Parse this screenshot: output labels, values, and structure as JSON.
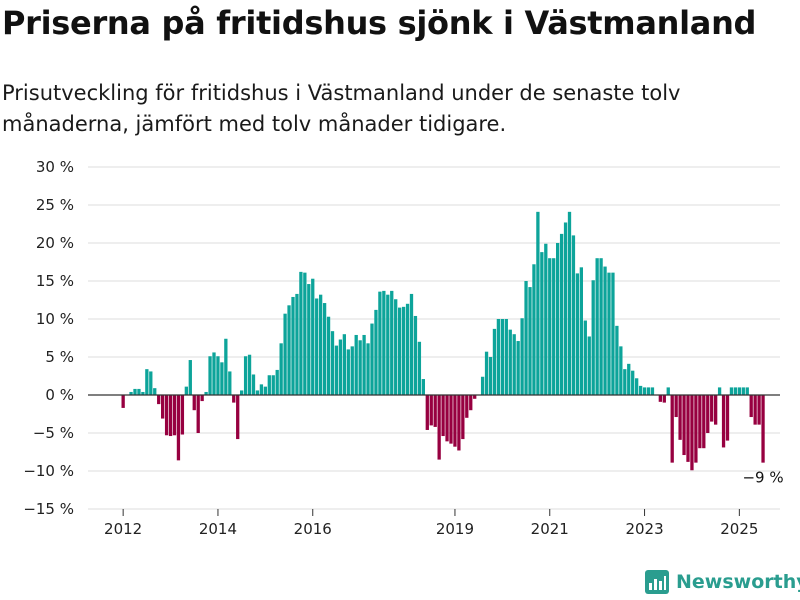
{
  "title": "Priserna på fritidshus sjönk i Västmanland",
  "subtitle": "Prisutveckling för fritidshus i Västmanland under de senaste tolv månaderna, jämfört med tolv månader tidigare.",
  "brand": {
    "name": "Newsworthy",
    "icon": "newsworthy-logo-icon"
  },
  "colors": {
    "positive": "#0da49a",
    "negative": "#970040",
    "grid": "#dddddd",
    "axis": "#333333"
  },
  "chart_data": {
    "type": "bar",
    "title": "Priserna på fritidshus sjönk i Västmanland",
    "ylabel": "",
    "xlabel": "",
    "ylim": [
      -15,
      30
    ],
    "y_ticks": [
      30,
      25,
      20,
      15,
      10,
      5,
      0,
      -5,
      -10,
      -15
    ],
    "y_tick_labels": [
      "30 %",
      "25 %",
      "20 %",
      "15 %",
      "10 %",
      "5 %",
      "0 %",
      "−5 %",
      "−10 %",
      "−15 %"
    ],
    "x_ticks": [
      {
        "label": "2012",
        "month": "2012-01"
      },
      {
        "label": "2014",
        "month": "2014-01"
      },
      {
        "label": "2016",
        "month": "2016-01"
      },
      {
        "label": "2019",
        "month": "2019-01"
      },
      {
        "label": "2021",
        "month": "2021-01"
      },
      {
        "label": "2023",
        "month": "2023-01"
      },
      {
        "label": "2025",
        "month": "2025-01"
      }
    ],
    "grid": true,
    "start_month": "2012-01",
    "values": [
      -1.7,
      0,
      0.4,
      0.8,
      0.8,
      0.4,
      3.4,
      3.1,
      0.9,
      -1.2,
      -3.1,
      -5.3,
      -5.4,
      -5.3,
      -8.6,
      -5.2,
      1.1,
      4.6,
      -2.0,
      -5.0,
      -0.8,
      0.4,
      5.1,
      5.6,
      5.1,
      4.3,
      7.4,
      3.1,
      -1.0,
      -5.8,
      0.6,
      5.1,
      5.3,
      2.7,
      0.6,
      1.4,
      1.1,
      2.6,
      2.6,
      3.3,
      6.8,
      10.7,
      11.8,
      12.9,
      13.3,
      16.2,
      16.1,
      14.6,
      15.3,
      12.7,
      13.2,
      12.1,
      10.3,
      8.4,
      6.5,
      7.3,
      8.0,
      6.0,
      6.4,
      7.9,
      7.2,
      7.9,
      6.8,
      9.4,
      11.2,
      13.6,
      13.7,
      13.2,
      13.7,
      12.6,
      11.5,
      11.6,
      12.0,
      13.3,
      10.4,
      7.0,
      2.1,
      -4.6,
      -4.0,
      -4.2,
      -8.5,
      -5.4,
      -6.1,
      -6.4,
      -6.8,
      -7.3,
      -5.8,
      -3.0,
      -2.0,
      -0.5,
      0,
      2.4,
      5.7,
      5.0,
      8.7,
      10.0,
      10.0,
      10.0,
      8.6,
      8.0,
      7.1,
      10.1,
      15.0,
      14.2,
      17.2,
      24.1,
      18.8,
      19.9,
      18.0,
      18.0,
      20.0,
      21.2,
      22.7,
      24.1,
      21.0,
      16.0,
      16.8,
      9.8,
      7.7,
      15.1,
      18.0,
      18.0,
      16.9,
      16.1,
      16.1,
      9.1,
      6.4,
      3.4,
      4.1,
      3.2,
      2.2,
      1.2,
      1.0,
      1.0,
      1.0,
      0,
      -0.9,
      -1.0,
      1.0,
      -8.9,
      -2.9,
      -5.9,
      -7.9,
      -8.8,
      -9.9,
      -8.9,
      -7.0,
      -7.0,
      -5.0,
      -3.5,
      -3.9,
      1.0,
      -6.9,
      -6.0,
      1.0,
      1.0,
      1.0,
      1.0,
      1.0,
      -2.9,
      -3.9,
      -3.9,
      -8.9
    ],
    "annotations": [
      {
        "text": "−9 %",
        "target": "last-bar"
      }
    ]
  }
}
